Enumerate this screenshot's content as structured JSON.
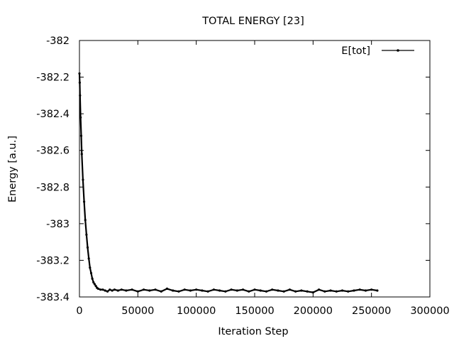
{
  "chart_data": {
    "type": "line",
    "title": "TOTAL ENERGY [23]",
    "xlabel": "Iteration Step",
    "ylabel": "Energy [a.u.]",
    "xlim": [
      0,
      300000
    ],
    "ylim": [
      -383.4,
      -382.0
    ],
    "xticks": [
      0,
      50000,
      100000,
      150000,
      200000,
      250000,
      300000
    ],
    "xtick_labels": [
      "0",
      "50000",
      "100000",
      "150000",
      "200000",
      "250000",
      "300000"
    ],
    "yticks": [
      -382.0,
      -382.2,
      -382.4,
      -382.6,
      -382.8,
      -383.0,
      -383.2,
      -383.4
    ],
    "ytick_labels": [
      "-382",
      "-382.2",
      "-382.4",
      "-382.6",
      "-382.8",
      "-383",
      "-383.2",
      "-383.4"
    ],
    "grid": false,
    "legend_position": "top-right",
    "series": [
      {
        "name": "E[tot]",
        "color": "#000000",
        "marker": "dot",
        "x": [
          0,
          250,
          500,
          1000,
          1500,
          2000,
          3000,
          4000,
          5000,
          6000,
          7000,
          8000,
          9000,
          10000,
          11000,
          12000,
          13000,
          14000,
          15000,
          16000,
          18000,
          20000,
          22000,
          24000,
          26000,
          28000,
          30000,
          33000,
          36000,
          40000,
          45000,
          50000,
          55000,
          60000,
          65000,
          70000,
          75000,
          80000,
          85000,
          90000,
          95000,
          100000,
          105000,
          110000,
          115000,
          120000,
          125000,
          130000,
          135000,
          140000,
          145000,
          150000,
          155000,
          160000,
          165000,
          170000,
          175000,
          180000,
          185000,
          190000,
          195000,
          200000,
          205000,
          210000,
          215000,
          220000,
          225000,
          230000,
          235000,
          240000,
          245000,
          250000,
          255000
        ],
        "y": [
          -382.18,
          -382.23,
          -382.3,
          -382.42,
          -382.52,
          -382.62,
          -382.76,
          -382.88,
          -382.98,
          -383.06,
          -383.13,
          -383.19,
          -383.24,
          -383.27,
          -383.3,
          -383.32,
          -383.33,
          -383.34,
          -383.35,
          -383.355,
          -383.36,
          -383.36,
          -383.365,
          -383.37,
          -383.36,
          -383.365,
          -383.36,
          -383.365,
          -383.36,
          -383.365,
          -383.36,
          -383.37,
          -383.36,
          -383.365,
          -383.36,
          -383.37,
          -383.355,
          -383.365,
          -383.37,
          -383.36,
          -383.365,
          -383.36,
          -383.365,
          -383.37,
          -383.36,
          -383.365,
          -383.37,
          -383.36,
          -383.365,
          -383.36,
          -383.37,
          -383.36,
          -383.365,
          -383.37,
          -383.36,
          -383.365,
          -383.37,
          -383.36,
          -383.37,
          -383.365,
          -383.37,
          -383.375,
          -383.36,
          -383.37,
          -383.365,
          -383.37,
          -383.365,
          -383.37,
          -383.365,
          -383.36,
          -383.365,
          -383.36,
          -383.365
        ]
      }
    ]
  }
}
